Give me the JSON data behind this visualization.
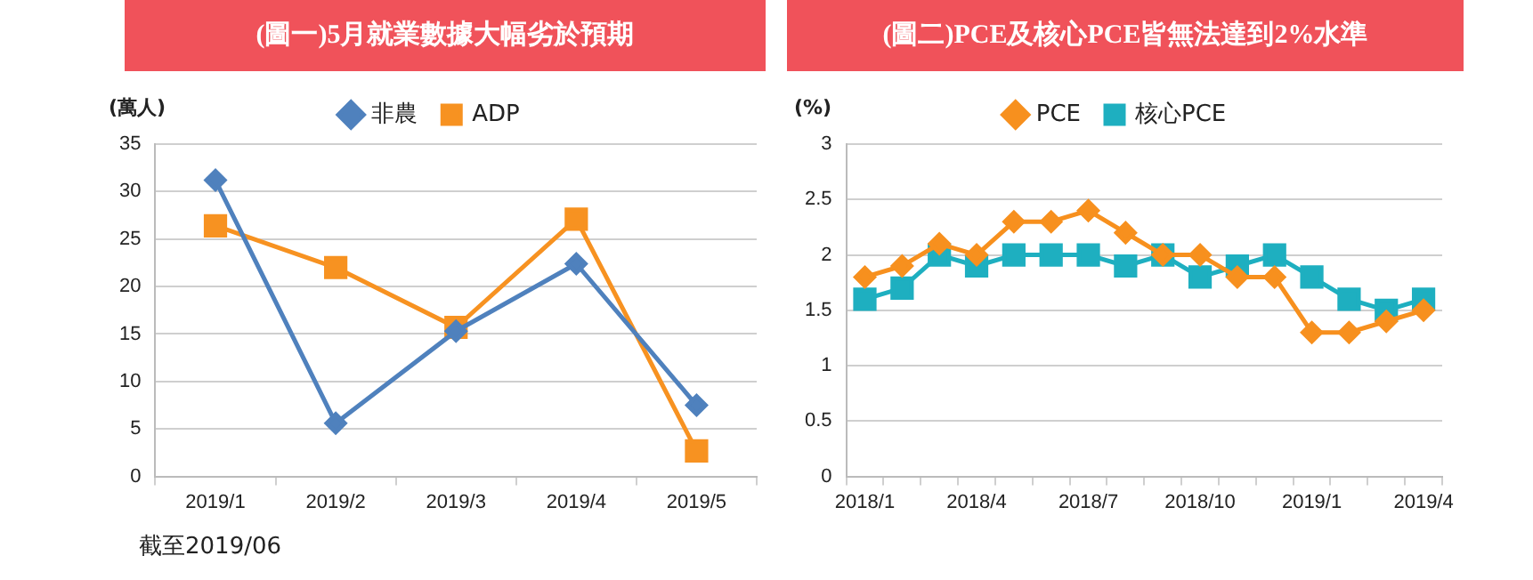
{
  "chart_data": [
    {
      "type": "line",
      "title": "(圖一)5月就業數據大幅劣於預期",
      "ylabel": "(萬人)",
      "categories": [
        "2019/1",
        "2019/2",
        "2019/3",
        "2019/4",
        "2019/5"
      ],
      "series": [
        {
          "name": "非農",
          "color": "#4f81bd",
          "marker": "diamond",
          "values": [
            31.2,
            5.6,
            15.3,
            22.4,
            7.5
          ]
        },
        {
          "name": "ADP",
          "color": "#f79221",
          "marker": "square",
          "values": [
            26.4,
            22.0,
            15.7,
            27.1,
            2.7
          ]
        }
      ],
      "ylim": [
        0,
        35
      ],
      "yticks": [
        0,
        5,
        10,
        15,
        20,
        25,
        30,
        35
      ],
      "grid": "y",
      "legend": "top",
      "annotations": [
        "截至2019/06"
      ]
    },
    {
      "type": "line",
      "title": "(圖二)PCE及核心PCE皆無法達到2%水準",
      "ylabel": "(%)",
      "categories": [
        "2018/1",
        null,
        null,
        "2018/4",
        null,
        null,
        "2018/7",
        null,
        null,
        "2018/10",
        null,
        null,
        "2019/1",
        null,
        null,
        "2019/4"
      ],
      "series": [
        {
          "name": "PCE",
          "color": "#f7901e",
          "marker": "diamond",
          "values": [
            1.8,
            1.9,
            2.1,
            2.0,
            2.3,
            2.3,
            2.4,
            2.2,
            2.0,
            2.0,
            1.8,
            1.8,
            1.3,
            1.3,
            1.4,
            1.5
          ]
        },
        {
          "name": "核心PCE",
          "color": "#1eafc0",
          "marker": "square",
          "values": [
            1.6,
            1.7,
            2.0,
            1.9,
            2.0,
            2.0,
            2.0,
            1.9,
            2.0,
            1.8,
            1.9,
            2.0,
            1.8,
            1.6,
            1.5,
            1.6
          ]
        }
      ],
      "ylim": [
        0,
        3
      ],
      "yticks": [
        0,
        0.5,
        1,
        1.5,
        2,
        2.5,
        3
      ],
      "grid": "y",
      "legend": "top"
    }
  ]
}
